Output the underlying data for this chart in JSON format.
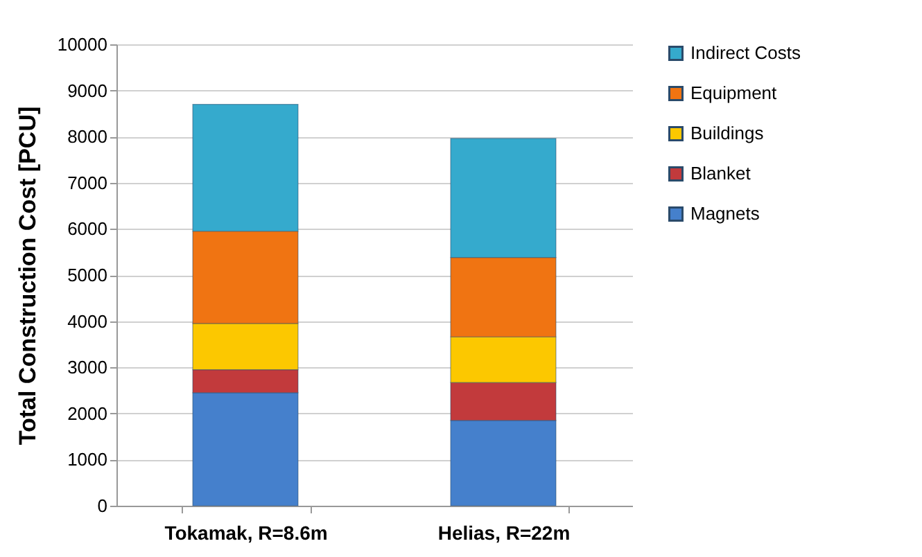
{
  "chart_data": {
    "type": "bar",
    "stacked": true,
    "ylabel": "Total Construction Cost [PCU]",
    "categories": [
      "Tokamak, R=8.6m",
      "Helias, R=22m"
    ],
    "series": [
      {
        "name": "Magnets",
        "color": "#4580cc",
        "values": [
          2450,
          1850
        ]
      },
      {
        "name": "Blanket",
        "color": "#c23a3c",
        "values": [
          500,
          820
        ]
      },
      {
        "name": "Buildings",
        "color": "#fcc800",
        "values": [
          1000,
          990
        ]
      },
      {
        "name": "Equipment",
        "color": "#f07412",
        "values": [
          2000,
          1720
        ]
      },
      {
        "name": "Indirect Costs",
        "color": "#35aacd",
        "values": [
          2750,
          2580
        ]
      }
    ],
    "ylim": [
      0,
      10000
    ],
    "yticks": [
      0,
      1000,
      2000,
      3000,
      4000,
      5000,
      6000,
      7000,
      8000,
      9000,
      10000
    ],
    "grid": "y",
    "legend": "right"
  }
}
